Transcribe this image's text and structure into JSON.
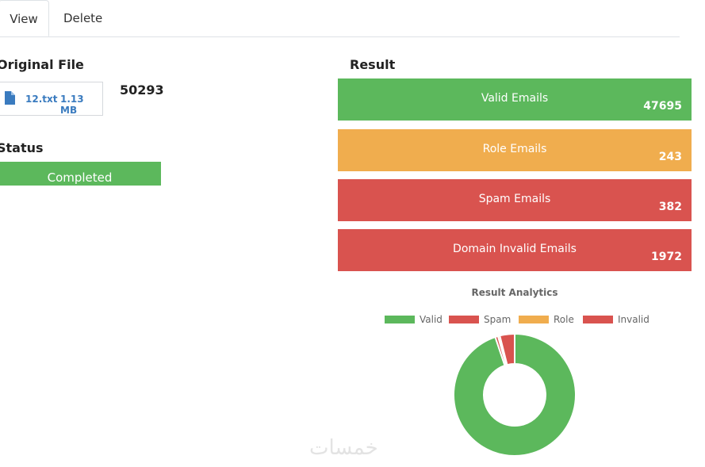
{
  "tabs": {
    "view": "View",
    "delete": "Delete"
  },
  "original_file": {
    "title": "Original File",
    "file_name": "12.txt",
    "file_size": "1.13 MB",
    "total": "50293",
    "icon": "file-icon"
  },
  "status": {
    "title": "Status",
    "value": "Completed"
  },
  "result": {
    "title": "Result",
    "items": [
      {
        "label": "Valid Emails",
        "value": "47695",
        "color": "#5cb85c"
      },
      {
        "label": "Role Emails",
        "value": "243",
        "color": "#f0ad4e"
      },
      {
        "label": "Spam Emails",
        "value": "382",
        "color": "#d9534f"
      },
      {
        "label": "Domain Invalid Emails",
        "value": "1972",
        "color": "#d9534f"
      }
    ]
  },
  "chart_data": {
    "type": "pie",
    "title": "Result Analytics",
    "variant": "doughnut",
    "legend_position": "top",
    "series": [
      {
        "name": "Valid",
        "value": 47695,
        "color": "#5cb85c"
      },
      {
        "name": "Spam",
        "value": 382,
        "color": "#d9534f"
      },
      {
        "name": "Role",
        "value": 243,
        "color": "#f0ad4e"
      },
      {
        "name": "Invalid",
        "value": 1972,
        "color": "#d9534f"
      }
    ]
  },
  "watermark": "خمسات"
}
